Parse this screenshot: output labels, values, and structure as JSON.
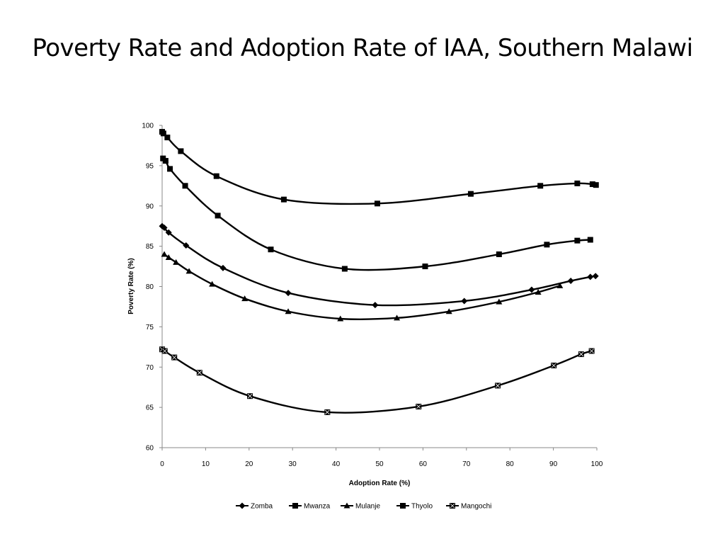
{
  "slide": {
    "title": "Poverty Rate and Adoption Rate of IAA, Southern Malawi"
  },
  "chart_data": {
    "type": "line",
    "title": "",
    "xlabel": "Adoption Rate (%)",
    "ylabel": "Poverty Rate (%)",
    "xlim": [
      0,
      100
    ],
    "ylim": [
      60,
      100
    ],
    "xticks": [
      0,
      10,
      20,
      30,
      40,
      50,
      60,
      70,
      80,
      90,
      100
    ],
    "yticks": [
      60,
      65,
      70,
      75,
      80,
      85,
      90,
      95,
      100
    ],
    "grid": false,
    "legend_position": "bottom",
    "series": [
      {
        "name": "Zomba",
        "marker": "diamond",
        "points": [
          [
            0,
            87.5
          ],
          [
            0.5,
            87.3
          ],
          [
            1.5,
            86.7
          ],
          [
            5.5,
            85.1
          ],
          [
            14,
            82.3
          ],
          [
            29,
            79.2
          ],
          [
            49,
            77.7
          ],
          [
            69.5,
            78.2
          ],
          [
            85,
            79.6
          ],
          [
            94,
            80.7
          ],
          [
            98.5,
            81.2
          ],
          [
            99.7,
            81.3
          ]
        ]
      },
      {
        "name": "Mwanza",
        "marker": "square",
        "points": [
          [
            0,
            99.2
          ],
          [
            0.3,
            99.0
          ],
          [
            1.2,
            98.5
          ],
          [
            4.3,
            96.8
          ],
          [
            12.5,
            93.7
          ],
          [
            28,
            90.8
          ],
          [
            49.5,
            90.3
          ],
          [
            71,
            91.5
          ],
          [
            87,
            92.5
          ],
          [
            95.5,
            92.8
          ],
          [
            99,
            92.7
          ],
          [
            99.8,
            92.6
          ]
        ]
      },
      {
        "name": "Mulanje",
        "marker": "triangle",
        "points": [
          [
            0.5,
            84.0
          ],
          [
            1.5,
            83.6
          ],
          [
            3.2,
            83.0
          ],
          [
            6.2,
            81.9
          ],
          [
            11.5,
            80.3
          ],
          [
            19,
            78.5
          ],
          [
            29,
            76.9
          ],
          [
            41,
            76.0
          ],
          [
            54,
            76.1
          ],
          [
            66,
            76.9
          ],
          [
            77.5,
            78.1
          ],
          [
            86.5,
            79.3
          ],
          [
            91.5,
            80.1
          ]
        ]
      },
      {
        "name": "Thyolo",
        "marker": "square",
        "points": [
          [
            0.2,
            95.9
          ],
          [
            0.8,
            95.6
          ],
          [
            1.8,
            94.6
          ],
          [
            5.3,
            92.5
          ],
          [
            12.8,
            88.8
          ],
          [
            25,
            84.6
          ],
          [
            42,
            82.2
          ],
          [
            60.5,
            82.5
          ],
          [
            77.5,
            84.0
          ],
          [
            88.5,
            85.2
          ],
          [
            95.5,
            85.7
          ],
          [
            98.5,
            85.8
          ]
        ]
      },
      {
        "name": "Mangochi",
        "marker": "square-x",
        "points": [
          [
            0,
            72.2
          ],
          [
            0.6,
            72.0
          ],
          [
            2.8,
            71.2
          ],
          [
            8.6,
            69.3
          ],
          [
            20.2,
            66.4
          ],
          [
            38,
            64.4
          ],
          [
            59,
            65.1
          ],
          [
            77.2,
            67.7
          ],
          [
            90.1,
            70.2
          ],
          [
            96.4,
            71.6
          ],
          [
            98.8,
            72.0
          ]
        ]
      }
    ]
  }
}
